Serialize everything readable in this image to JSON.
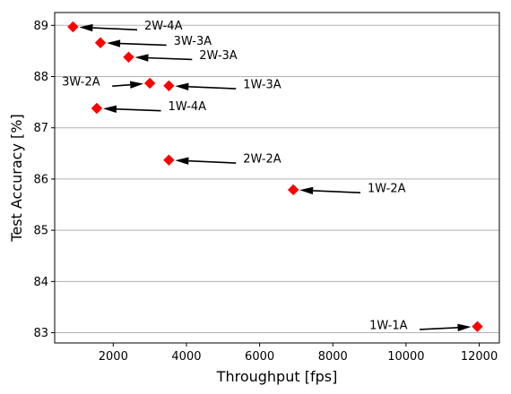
{
  "chart_data": {
    "type": "scatter",
    "title": "",
    "xlabel": "Throughput [fps]",
    "ylabel": "Test Accuracy [%]",
    "xlim": [
      400,
      12550
    ],
    "ylim": [
      82.8,
      89.25
    ],
    "xticks": [
      2000,
      4000,
      6000,
      8000,
      10000,
      12000
    ],
    "yticks": [
      83,
      84,
      85,
      86,
      87,
      88,
      89
    ],
    "grid": "horizontal",
    "marker": "diamond",
    "marker_color": "#ff0000",
    "arrow_color": "#000000",
    "points": [
      {
        "label": "2W-4A",
        "x": 900,
        "y": 88.97,
        "text_x": 2850,
        "text_y": 89.0
      },
      {
        "label": "3W-3A",
        "x": 1650,
        "y": 88.66,
        "text_x": 3650,
        "text_y": 88.7
      },
      {
        "label": "2W-3A",
        "x": 2420,
        "y": 88.38,
        "text_x": 4350,
        "text_y": 88.42
      },
      {
        "label": "3W-2A",
        "x": 3000,
        "y": 87.87,
        "text_x": 600,
        "text_y": 87.9
      },
      {
        "label": "1W-3A",
        "x": 3520,
        "y": 87.82,
        "text_x": 5550,
        "text_y": 87.85
      },
      {
        "label": "1W-4A",
        "x": 1550,
        "y": 87.38,
        "text_x": 3500,
        "text_y": 87.42
      },
      {
        "label": "2W-2A",
        "x": 3520,
        "y": 86.37,
        "text_x": 5550,
        "text_y": 86.4
      },
      {
        "label": "1W-2A",
        "x": 6920,
        "y": 85.79,
        "text_x": 8950,
        "text_y": 85.82
      },
      {
        "label": "1W-1A",
        "x": 11950,
        "y": 83.12,
        "text_x": 9000,
        "text_y": 83.15
      }
    ]
  }
}
